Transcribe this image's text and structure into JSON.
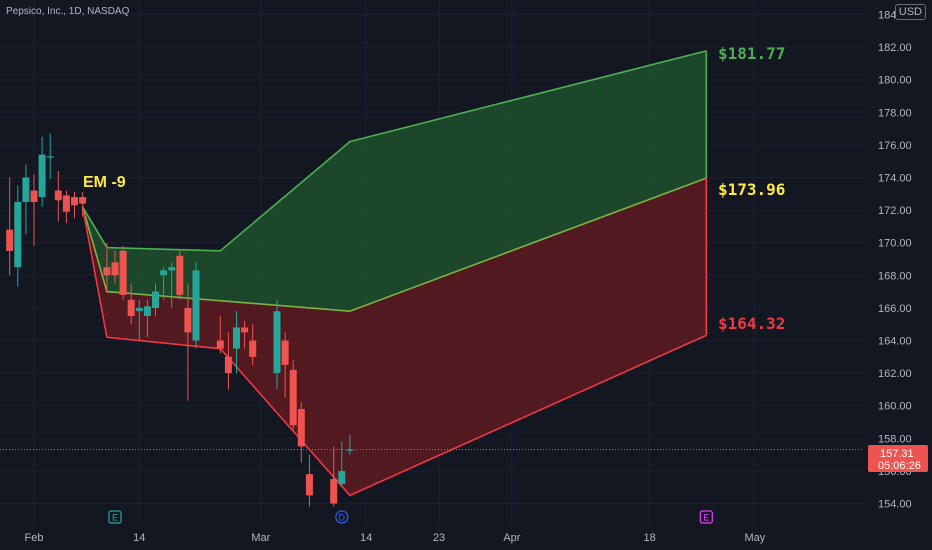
{
  "header": {
    "symbol_title": "Pepsico, Inc., 1D, NASDAQ",
    "currency_badge": "USD"
  },
  "price_label": {
    "price": "157.31",
    "countdown": "05:06:26"
  },
  "colors": {
    "background": "#131722",
    "up": "#26a69a",
    "down": "#ef5350",
    "green_line": "#4caf50",
    "red_line": "#f23645",
    "green_fill": "#1e4d2b",
    "red_fill": "#5a1a20",
    "yellow": "#ffeb3b",
    "axis_text": "#b2b5be"
  },
  "chart_data": {
    "type": "candlestick",
    "title": "Pepsico, Inc., 1D, NASDAQ",
    "y_axis": {
      "range": [
        152.5,
        186.5
      ],
      "ticks": [
        "154.00",
        "156.00",
        "158.00",
        "160.00",
        "162.00",
        "164.00",
        "166.00",
        "168.00",
        "170.00",
        "172.00",
        "174.00",
        "176.00",
        "178.00",
        "180.00",
        "182.00",
        "184.00"
      ],
      "currency": "USD"
    },
    "x_axis": {
      "ticks": [
        {
          "label": "Feb",
          "day": 0
        },
        {
          "label": "14",
          "day": 13
        },
        {
          "label": "Mar",
          "day": 28
        },
        {
          "label": "14",
          "day": 41
        },
        {
          "label": "23",
          "day": 50
        },
        {
          "label": "Apr",
          "day": 59
        },
        {
          "label": "18",
          "day": 76
        },
        {
          "label": "May",
          "day": 89
        }
      ]
    },
    "markers": [
      {
        "type": "E",
        "day": 10,
        "color": "#26a69a"
      },
      {
        "type": "D",
        "day": 38,
        "color": "#2962ff"
      },
      {
        "type": "E",
        "day": 83,
        "color": "#e040fb"
      }
    ],
    "candles": [
      {
        "day": -3,
        "o": 170.8,
        "h": 174.0,
        "l": 168.0,
        "c": 169.5
      },
      {
        "day": -2,
        "o": 168.5,
        "h": 173.5,
        "l": 167.3,
        "c": 172.5
      },
      {
        "day": -1,
        "o": 172.5,
        "h": 174.8,
        "l": 170.5,
        "c": 174.0
      },
      {
        "day": 0,
        "o": 173.2,
        "h": 174.2,
        "l": 169.8,
        "c": 172.5
      },
      {
        "day": 1,
        "o": 172.8,
        "h": 176.5,
        "l": 172.2,
        "c": 175.4
      },
      {
        "day": 2,
        "o": 175.3,
        "h": 176.7,
        "l": 173.9,
        "c": 175.3
      },
      {
        "day": 3,
        "o": 173.2,
        "h": 174.4,
        "l": 171.3,
        "c": 172.6
      },
      {
        "day": 4,
        "o": 172.9,
        "h": 173.2,
        "l": 171.2,
        "c": 171.9
      },
      {
        "day": 5,
        "o": 172.8,
        "h": 173.1,
        "l": 171.5,
        "c": 172.3
      },
      {
        "day": 6,
        "o": 172.8,
        "h": 173.1,
        "l": 171.6,
        "c": 172.4
      },
      {
        "day": 9,
        "o": 168.5,
        "h": 170.0,
        "l": 167.0,
        "c": 168.0
      },
      {
        "day": 10,
        "o": 168.8,
        "h": 169.5,
        "l": 167.5,
        "c": 168.0
      },
      {
        "day": 11,
        "o": 169.5,
        "h": 169.8,
        "l": 166.5,
        "c": 166.8
      },
      {
        "day": 12,
        "o": 166.5,
        "h": 167.5,
        "l": 165.0,
        "c": 165.5
      },
      {
        "day": 13,
        "o": 165.8,
        "h": 166.5,
        "l": 164.0,
        "c": 166.0
      },
      {
        "day": 14,
        "o": 165.5,
        "h": 166.5,
        "l": 164.2,
        "c": 166.1
      },
      {
        "day": 15,
        "o": 166.0,
        "h": 167.5,
        "l": 165.5,
        "c": 167.0
      },
      {
        "day": 16,
        "o": 168.0,
        "h": 168.5,
        "l": 166.5,
        "c": 168.3
      },
      {
        "day": 17,
        "o": 168.3,
        "h": 168.8,
        "l": 166.0,
        "c": 168.5
      },
      {
        "day": 18,
        "o": 169.2,
        "h": 169.5,
        "l": 166.5,
        "c": 166.8
      },
      {
        "day": 19,
        "o": 166.0,
        "h": 167.5,
        "l": 160.3,
        "c": 164.5
      },
      {
        "day": 20,
        "o": 164.0,
        "h": 168.8,
        "l": 163.5,
        "c": 168.3
      },
      {
        "day": 23,
        "o": 164.0,
        "h": 165.5,
        "l": 163.2,
        "c": 163.5
      },
      {
        "day": 24,
        "o": 163.0,
        "h": 164.5,
        "l": 161.0,
        "c": 162.0
      },
      {
        "day": 25,
        "o": 163.5,
        "h": 165.8,
        "l": 162.0,
        "c": 164.8
      },
      {
        "day": 26,
        "o": 164.8,
        "h": 165.2,
        "l": 163.5,
        "c": 164.5
      },
      {
        "day": 27,
        "o": 164.0,
        "h": 165.0,
        "l": 162.5,
        "c": 163.0
      },
      {
        "day": 30,
        "o": 162.0,
        "h": 166.5,
        "l": 161.0,
        "c": 165.8
      },
      {
        "day": 31,
        "o": 164.0,
        "h": 164.5,
        "l": 160.5,
        "c": 162.5
      },
      {
        "day": 32,
        "o": 162.2,
        "h": 162.8,
        "l": 158.5,
        "c": 158.8
      },
      {
        "day": 33,
        "o": 159.8,
        "h": 160.2,
        "l": 156.5,
        "c": 157.5
      },
      {
        "day": 34,
        "o": 155.8,
        "h": 157.0,
        "l": 153.8,
        "c": 154.5
      },
      {
        "day": 37,
        "o": 155.5,
        "h": 157.5,
        "l": 153.8,
        "c": 154.0
      },
      {
        "day": 38,
        "o": 155.2,
        "h": 157.8,
        "l": 155.0,
        "c": 156.0
      },
      {
        "day": 39,
        "o": 157.3,
        "h": 158.2,
        "l": 157.0,
        "c": 157.31
      }
    ],
    "expected_move": {
      "label": "EM -9",
      "lower_value": "$164.32",
      "mid_value": "$173.96",
      "upper_value": "$181.77",
      "upper_line": [
        {
          "day": 6,
          "v": 172.2
        },
        {
          "day": 9,
          "v": 169.7
        },
        {
          "day": 23,
          "v": 169.5
        },
        {
          "day": 39,
          "v": 176.2
        },
        {
          "day": 83,
          "v": 181.77
        }
      ],
      "mid_line": [
        {
          "day": 6,
          "v": 172.2
        },
        {
          "day": 9,
          "v": 167.0
        },
        {
          "day": 39,
          "v": 165.8
        },
        {
          "day": 83,
          "v": 173.96
        }
      ],
      "lower_line": [
        {
          "day": 6,
          "v": 172.2
        },
        {
          "day": 9,
          "v": 164.2
        },
        {
          "day": 23,
          "v": 163.5
        },
        {
          "day": 39,
          "v": 154.5
        },
        {
          "day": 83,
          "v": 164.32
        }
      ]
    },
    "current_price": 157.31
  }
}
